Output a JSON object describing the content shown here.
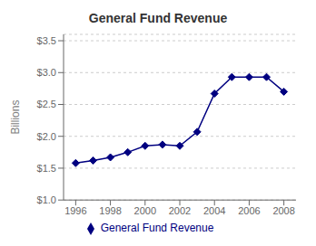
{
  "chart_data": {
    "type": "line",
    "title": "General Fund Revenue",
    "ylabel": "Billions",
    "x": [
      1996,
      1997,
      1998,
      1999,
      2000,
      2001,
      2002,
      2003,
      2004,
      2005,
      2006,
      2007,
      2008
    ],
    "series": [
      {
        "name": "General Fund Revenue",
        "color": "#000080",
        "marker": "diamond",
        "values": [
          1.58,
          1.62,
          1.67,
          1.75,
          1.85,
          1.87,
          1.85,
          2.07,
          2.67,
          2.93,
          2.93,
          2.93,
          2.7
        ]
      }
    ],
    "xlim": [
      1995.3,
      2008.7
    ],
    "xticks": [
      1996,
      1998,
      2000,
      2002,
      2004,
      2006,
      2008
    ],
    "ylim": [
      1.0,
      3.6
    ],
    "yticks": [
      {
        "value": 1.0,
        "label": "$1.0"
      },
      {
        "value": 1.5,
        "label": "$1.5"
      },
      {
        "value": 2.0,
        "label": "$2.0"
      },
      {
        "value": 2.5,
        "label": "$2.5"
      },
      {
        "value": 3.0,
        "label": "$3.0"
      },
      {
        "value": 3.5,
        "label": "$3.5"
      }
    ],
    "grid": "y",
    "legend": "bottom"
  }
}
